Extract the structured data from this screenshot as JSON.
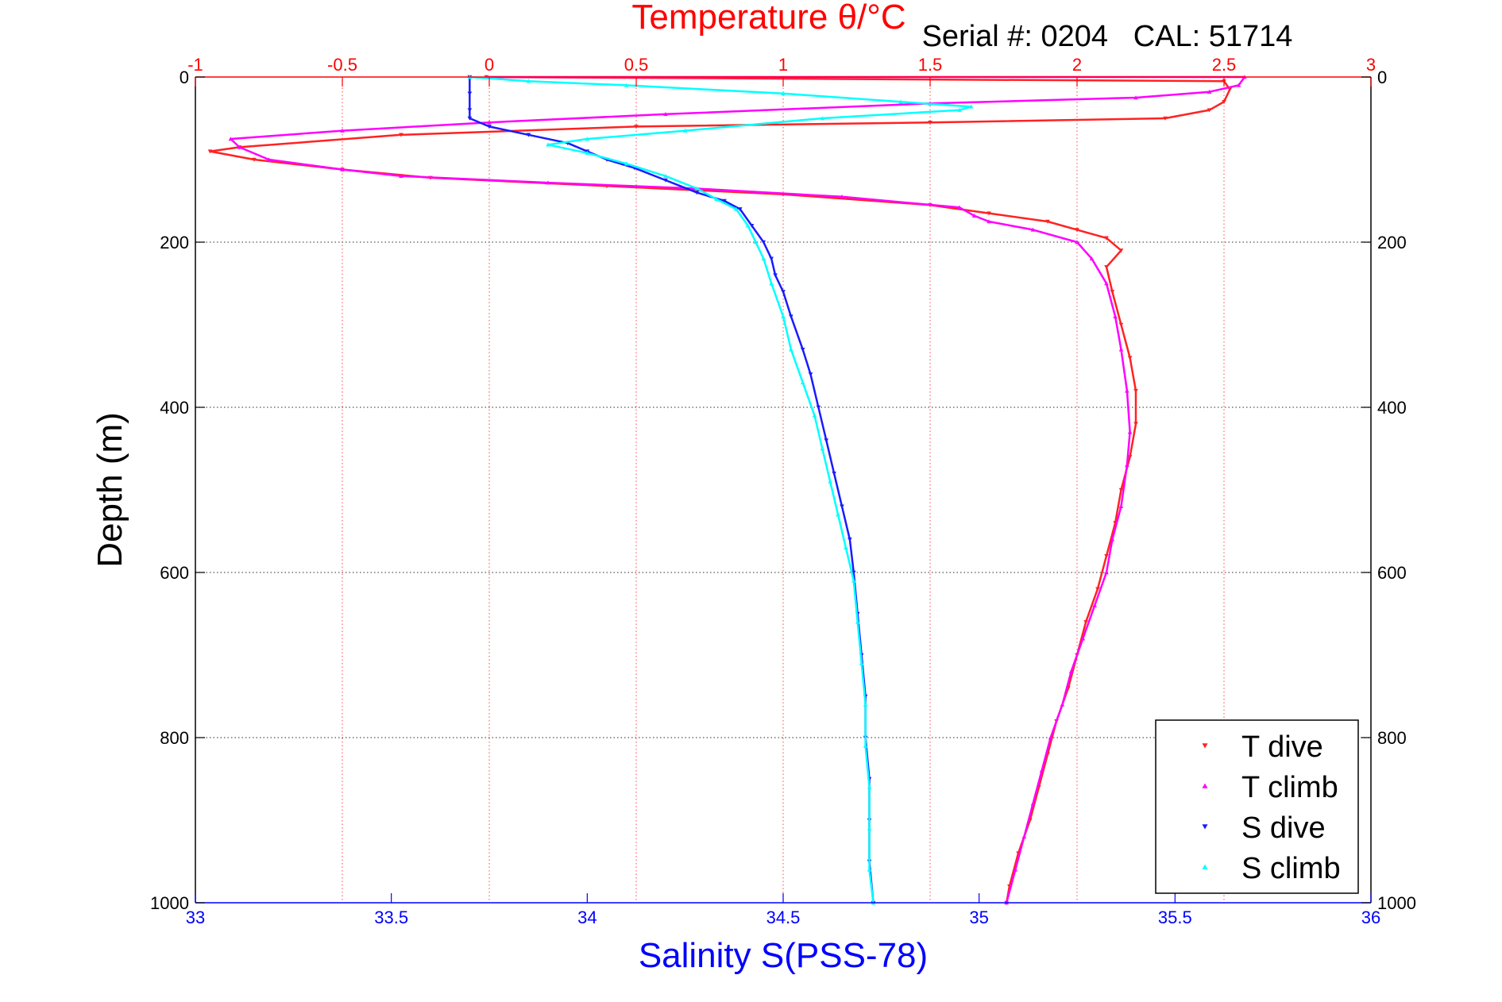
{
  "chart_data": {
    "type": "scatter",
    "title": "Temperature θ/°C",
    "subtitle": "Serial #: 0204   CAL: 51714",
    "ylabel": "Depth (m)",
    "xlabel": "Salinity S(PSS-78)",
    "ylim": [
      0,
      1000
    ],
    "y_reversed": true,
    "xlim_temperature": [
      -1,
      3
    ],
    "xlim_salinity": [
      33,
      36
    ],
    "y_ticks": [
      "0",
      "200",
      "400",
      "600",
      "800",
      "1000"
    ],
    "y_tick_values": [
      0,
      200,
      400,
      600,
      800,
      1000
    ],
    "top_ticks": [
      "-1",
      "-0.5",
      "0",
      "0.5",
      "1",
      "1.5",
      "2",
      "2.5",
      "3"
    ],
    "top_tick_values": [
      -1,
      -0.5,
      0,
      0.5,
      1,
      1.5,
      2,
      2.5,
      3
    ],
    "bottom_ticks": [
      "33",
      "33.5",
      "34",
      "34.5",
      "35",
      "35.5",
      "36"
    ],
    "bottom_tick_values": [
      33,
      33.5,
      34,
      34.5,
      35,
      35.5,
      36
    ],
    "grid": true,
    "legend_position": "bottom-right",
    "colors": {
      "temperature_axis": "#ff0000",
      "salinity_axis": "#0000ff",
      "grid_temperature": "#ff6666",
      "grid_depth": "#555555"
    },
    "series": [
      {
        "name": "T dive",
        "axis": "temperature",
        "marker": "triangle-down",
        "color": "#ff2222",
        "points": [
          [
            -0.01,
            0
          ],
          [
            2.5,
            5
          ],
          [
            2.52,
            15
          ],
          [
            2.5,
            30
          ],
          [
            2.45,
            40
          ],
          [
            2.3,
            50
          ],
          [
            1.5,
            55
          ],
          [
            0.5,
            60
          ],
          [
            -0.3,
            70
          ],
          [
            -0.85,
            85
          ],
          [
            -0.95,
            90
          ],
          [
            -0.8,
            100
          ],
          [
            -0.5,
            112
          ],
          [
            -0.2,
            122
          ],
          [
            0.4,
            132
          ],
          [
            1.0,
            142
          ],
          [
            1.5,
            155
          ],
          [
            1.7,
            165
          ],
          [
            1.9,
            175
          ],
          [
            2.0,
            185
          ],
          [
            2.1,
            195
          ],
          [
            2.15,
            210
          ],
          [
            2.1,
            230
          ],
          [
            2.12,
            260
          ],
          [
            2.15,
            300
          ],
          [
            2.18,
            340
          ],
          [
            2.2,
            380
          ],
          [
            2.2,
            420
          ],
          [
            2.18,
            460
          ],
          [
            2.15,
            500
          ],
          [
            2.13,
            540
          ],
          [
            2.1,
            580
          ],
          [
            2.07,
            620
          ],
          [
            2.03,
            660
          ],
          [
            2.0,
            700
          ],
          [
            1.97,
            740
          ],
          [
            1.93,
            780
          ],
          [
            1.9,
            820
          ],
          [
            1.87,
            860
          ],
          [
            1.84,
            900
          ],
          [
            1.8,
            940
          ],
          [
            1.77,
            980
          ],
          [
            1.76,
            1000
          ]
        ]
      },
      {
        "name": "T climb",
        "axis": "temperature",
        "marker": "triangle-up",
        "color": "#ff00ff",
        "points": [
          [
            -0.01,
            0
          ],
          [
            2.57,
            0
          ],
          [
            2.55,
            10
          ],
          [
            2.45,
            18
          ],
          [
            2.2,
            25
          ],
          [
            1.5,
            32
          ],
          [
            0.6,
            45
          ],
          [
            0.0,
            55
          ],
          [
            -0.5,
            65
          ],
          [
            -0.88,
            75
          ],
          [
            -0.85,
            85
          ],
          [
            -0.75,
            100
          ],
          [
            -0.5,
            112
          ],
          [
            -0.3,
            120
          ],
          [
            0.2,
            128
          ],
          [
            0.7,
            135
          ],
          [
            1.2,
            145
          ],
          [
            1.6,
            158
          ],
          [
            1.65,
            168
          ],
          [
            1.7,
            175
          ],
          [
            1.85,
            185
          ],
          [
            2.0,
            200
          ],
          [
            2.05,
            220
          ],
          [
            2.1,
            250
          ],
          [
            2.13,
            290
          ],
          [
            2.15,
            330
          ],
          [
            2.17,
            380
          ],
          [
            2.18,
            430
          ],
          [
            2.17,
            470
          ],
          [
            2.15,
            520
          ],
          [
            2.12,
            560
          ],
          [
            2.1,
            600
          ],
          [
            2.06,
            640
          ],
          [
            2.02,
            680
          ],
          [
            1.98,
            720
          ],
          [
            1.95,
            760
          ],
          [
            1.91,
            800
          ],
          [
            1.88,
            840
          ],
          [
            1.85,
            880
          ],
          [
            1.82,
            920
          ],
          [
            1.79,
            960
          ],
          [
            1.76,
            1000
          ]
        ]
      },
      {
        "name": "S dive",
        "axis": "salinity",
        "marker": "triangle-down",
        "color": "#1a1aff",
        "points": [
          [
            33.7,
            0
          ],
          [
            33.7,
            20
          ],
          [
            33.7,
            40
          ],
          [
            33.7,
            50
          ],
          [
            33.75,
            60
          ],
          [
            33.85,
            70
          ],
          [
            33.95,
            80
          ],
          [
            34.0,
            90
          ],
          [
            34.05,
            100
          ],
          [
            34.12,
            110
          ],
          [
            34.2,
            125
          ],
          [
            34.28,
            140
          ],
          [
            34.35,
            150
          ],
          [
            34.39,
            160
          ],
          [
            34.42,
            180
          ],
          [
            34.45,
            200
          ],
          [
            34.47,
            220
          ],
          [
            34.48,
            240
          ],
          [
            34.5,
            260
          ],
          [
            34.52,
            290
          ],
          [
            34.55,
            330
          ],
          [
            34.57,
            360
          ],
          [
            34.59,
            400
          ],
          [
            34.61,
            440
          ],
          [
            34.63,
            480
          ],
          [
            34.65,
            520
          ],
          [
            34.67,
            560
          ],
          [
            34.68,
            600
          ],
          [
            34.69,
            650
          ],
          [
            34.7,
            700
          ],
          [
            34.71,
            750
          ],
          [
            34.71,
            800
          ],
          [
            34.72,
            850
          ],
          [
            34.72,
            900
          ],
          [
            34.72,
            950
          ],
          [
            34.73,
            1000
          ]
        ]
      },
      {
        "name": "S climb",
        "axis": "salinity",
        "marker": "triangle-up",
        "color": "#00ffff",
        "points": [
          [
            33.7,
            0
          ],
          [
            33.85,
            5
          ],
          [
            34.1,
            10
          ],
          [
            34.5,
            20
          ],
          [
            34.8,
            30
          ],
          [
            34.98,
            36
          ],
          [
            34.95,
            40
          ],
          [
            34.6,
            50
          ],
          [
            34.25,
            65
          ],
          [
            34.0,
            75
          ],
          [
            33.9,
            82
          ],
          [
            34.0,
            92
          ],
          [
            34.1,
            105
          ],
          [
            34.2,
            120
          ],
          [
            34.28,
            135
          ],
          [
            34.33,
            148
          ],
          [
            34.38,
            160
          ],
          [
            34.41,
            180
          ],
          [
            34.43,
            200
          ],
          [
            34.45,
            220
          ],
          [
            34.47,
            250
          ],
          [
            34.5,
            290
          ],
          [
            34.52,
            330
          ],
          [
            34.55,
            370
          ],
          [
            34.58,
            410
          ],
          [
            34.6,
            450
          ],
          [
            34.62,
            490
          ],
          [
            34.64,
            530
          ],
          [
            34.66,
            570
          ],
          [
            34.68,
            610
          ],
          [
            34.69,
            660
          ],
          [
            34.7,
            710
          ],
          [
            34.71,
            760
          ],
          [
            34.71,
            810
          ],
          [
            34.72,
            860
          ],
          [
            34.72,
            910
          ],
          [
            34.72,
            960
          ],
          [
            34.73,
            1000
          ]
        ]
      }
    ]
  }
}
